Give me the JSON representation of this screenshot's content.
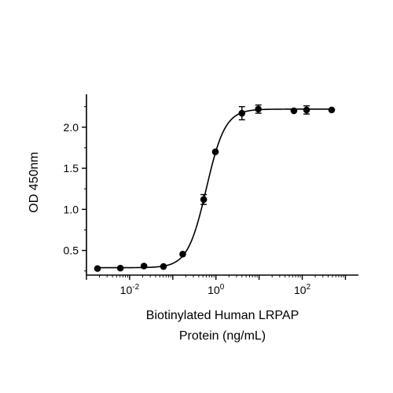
{
  "chart_data": {
    "type": "scatter",
    "xscale": "log",
    "xlabel": [
      "Biotinylated Human LRPAP",
      "Protein (ng/mL)"
    ],
    "ylabel": "OD 450nm",
    "xlim": [
      0.001,
      2000
    ],
    "ylim": [
      0.2,
      2.4
    ],
    "grid": false,
    "x_ticks": [
      {
        "value": 0.01,
        "base": "10",
        "exp": "-2"
      },
      {
        "value": 1,
        "base": "10",
        "exp": "0"
      },
      {
        "value": 100,
        "base": "10",
        "exp": "2"
      }
    ],
    "y_ticks": [
      {
        "value": 0.5,
        "label": "0.5"
      },
      {
        "value": 1.0,
        "label": "1.0"
      },
      {
        "value": 1.5,
        "label": "1.5"
      },
      {
        "value": 2.0,
        "label": "2.0"
      }
    ],
    "points": [
      {
        "x": 0.0018,
        "y": 0.28,
        "err": 0.0
      },
      {
        "x": 0.0061,
        "y": 0.285,
        "err": 0.0
      },
      {
        "x": 0.0215,
        "y": 0.31,
        "err": 0.0
      },
      {
        "x": 0.061,
        "y": 0.305,
        "err": 0.0
      },
      {
        "x": 0.17,
        "y": 0.455,
        "err": 0.0
      },
      {
        "x": 0.52,
        "y": 1.12,
        "err": 0.06
      },
      {
        "x": 0.97,
        "y": 1.7,
        "err": 0.0
      },
      {
        "x": 4.0,
        "y": 2.17,
        "err": 0.08
      },
      {
        "x": 9.6,
        "y": 2.22,
        "err": 0.05
      },
      {
        "x": 64,
        "y": 2.2,
        "err": 0.0
      },
      {
        "x": 126,
        "y": 2.21,
        "err": 0.05
      },
      {
        "x": 480,
        "y": 2.21,
        "err": 0.0
      }
    ],
    "fit": {
      "model": "4PL",
      "bottom": 0.29,
      "top": 2.22,
      "ec50": 0.6,
      "hill": 2.0
    }
  }
}
